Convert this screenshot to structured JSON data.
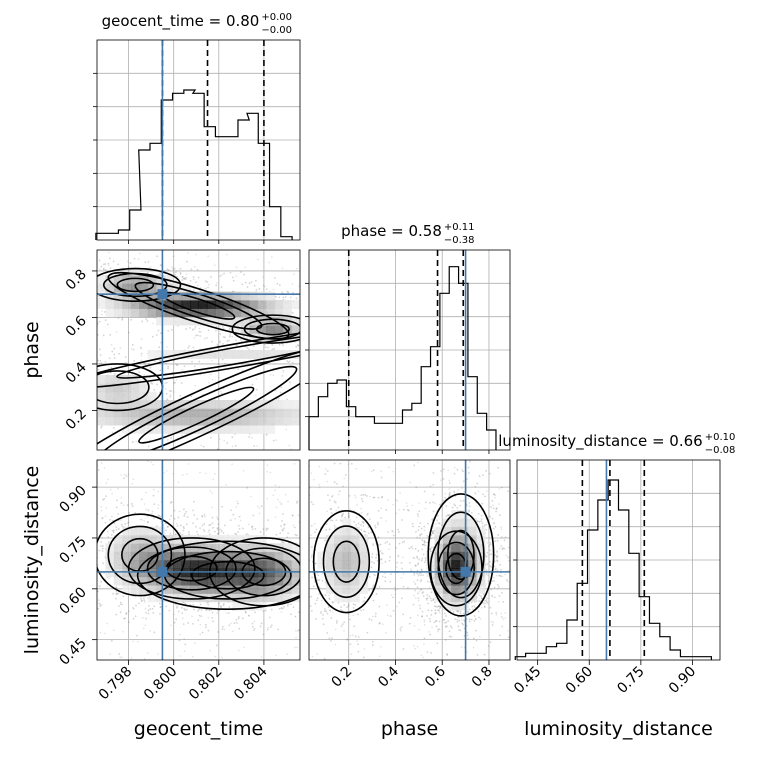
{
  "chart_data": [
    {
      "type": "histogram",
      "panel": "geocent_time-marginal",
      "title": {
        "prefix": "geocent_time = 0.80",
        "sup": "+0.00",
        "sub": "−0.00"
      },
      "xlim": [
        0.7966,
        0.8056
      ],
      "ylim": [
        0,
        6
      ],
      "x": [
        0.7968,
        0.7973,
        0.7978,
        0.7983,
        0.7987,
        0.7992,
        0.7997,
        0.8002,
        0.8007,
        0.8011,
        0.8016,
        0.8021,
        0.8026,
        0.8031,
        0.8035,
        0.804,
        0.8045,
        0.805
      ],
      "counts": [
        0.2,
        0.2,
        0.3,
        0.9,
        2.7,
        2.9,
        4.2,
        4.4,
        4.5,
        4.4,
        3.4,
        3.1,
        3.1,
        3.6,
        3.8,
        2.9,
        1.0,
        0.1
      ],
      "quantile_lines": [
        0.7995,
        0.8015,
        0.804
      ],
      "truth": 0.7995
    },
    {
      "type": "histogram",
      "panel": "phase-marginal",
      "title": {
        "prefix": "phase = 0.58",
        "sup": "+0.11",
        "sub": "−0.38"
      },
      "xlim": [
        0.03,
        0.89
      ],
      "ylim": [
        0,
        6
      ],
      "x": [
        0.05,
        0.09,
        0.13,
        0.17,
        0.21,
        0.25,
        0.29,
        0.33,
        0.37,
        0.41,
        0.45,
        0.49,
        0.53,
        0.57,
        0.61,
        0.65,
        0.69,
        0.73,
        0.77,
        0.81
      ],
      "counts": [
        1.0,
        1.6,
        2.0,
        2.1,
        1.3,
        1.0,
        1.0,
        0.8,
        0.8,
        0.8,
        1.2,
        1.4,
        2.5,
        3.1,
        4.7,
        5.5,
        5.0,
        2.2,
        1.1,
        0.6
      ],
      "quantile_lines": [
        0.2,
        0.58,
        0.69
      ],
      "truth": 0.7
    },
    {
      "type": "histogram",
      "panel": "luminosity_distance-marginal",
      "title": {
        "prefix": "luminosity_distance = 0.66",
        "sup": "+0.10",
        "sub": "−0.08"
      },
      "xlim": [
        0.39,
        0.98
      ],
      "ylim": [
        0,
        6
      ],
      "x": [
        0.4,
        0.43,
        0.46,
        0.49,
        0.52,
        0.55,
        0.58,
        0.61,
        0.64,
        0.67,
        0.7,
        0.73,
        0.76,
        0.79,
        0.82,
        0.85,
        0.88,
        0.91,
        0.94
      ],
      "counts": [
        0.1,
        0.2,
        0.2,
        0.4,
        0.5,
        1.2,
        2.3,
        3.9,
        4.8,
        5.4,
        4.5,
        3.2,
        1.9,
        1.1,
        0.7,
        0.3,
        0.1,
        0.1,
        0.1
      ],
      "quantile_lines": [
        0.58,
        0.66,
        0.76
      ],
      "truth": 0.65
    },
    {
      "type": "contour",
      "panel": "phase-vs-geocent_time",
      "xlim": [
        0.7966,
        0.8056
      ],
      "ylim": [
        0.03,
        0.89
      ],
      "xticks": [
        0.798,
        0.8,
        0.802,
        0.804
      ],
      "yticks": [
        0.2,
        0.4,
        0.6,
        0.8
      ],
      "modes": [
        {
          "x": 0.8011,
          "y": 0.65,
          "sx": 0.0021,
          "sy": 0.035,
          "rot": -18,
          "w": 1.0
        },
        {
          "x": 0.8044,
          "y": 0.55,
          "sx": 0.0009,
          "sy": 0.03,
          "rot": 0,
          "w": 0.6
        },
        {
          "x": 0.7983,
          "y": 0.74,
          "sx": 0.001,
          "sy": 0.035,
          "rot": 0,
          "w": 0.55
        },
        {
          "x": 0.801,
          "y": 0.18,
          "sx": 0.0035,
          "sy": 0.045,
          "rot": 25,
          "w": 0.45
        },
        {
          "x": 0.7975,
          "y": 0.3,
          "sx": 0.001,
          "sy": 0.05,
          "rot": 0,
          "w": 0.3
        },
        {
          "x": 0.803,
          "y": 0.44,
          "sx": 0.004,
          "sy": 0.025,
          "rot": 10,
          "w": 0.2
        }
      ],
      "truth": {
        "x": 0.7995,
        "y": 0.7
      }
    },
    {
      "type": "contour",
      "panel": "luminosity_distance-vs-geocent_time",
      "xlim": [
        0.7966,
        0.8056
      ],
      "ylim": [
        0.39,
        0.98
      ],
      "xticks": [
        0.798,
        0.8,
        0.802,
        0.804
      ],
      "yticks": [
        0.45,
        0.6,
        0.75,
        0.9
      ],
      "modes": [
        {
          "x": 0.8008,
          "y": 0.66,
          "sx": 0.0014,
          "sy": 0.045,
          "rot": 0,
          "w": 1.0
        },
        {
          "x": 0.804,
          "y": 0.65,
          "sx": 0.0012,
          "sy": 0.05,
          "rot": 0,
          "w": 0.75
        },
        {
          "x": 0.7985,
          "y": 0.7,
          "sx": 0.001,
          "sy": 0.06,
          "rot": 0,
          "w": 0.5
        },
        {
          "x": 0.8024,
          "y": 0.64,
          "sx": 0.002,
          "sy": 0.05,
          "rot": 0,
          "w": 0.45
        }
      ],
      "truth": {
        "x": 0.7995,
        "y": 0.65
      }
    },
    {
      "type": "contour",
      "panel": "luminosity_distance-vs-phase",
      "xlim": [
        0.03,
        0.89
      ],
      "ylim": [
        0.39,
        0.98
      ],
      "xticks": [
        0.2,
        0.4,
        0.6,
        0.8
      ],
      "yticks": [
        0.45,
        0.6,
        0.75,
        0.9
      ],
      "modes": [
        {
          "x": 0.66,
          "y": 0.66,
          "sx": 0.055,
          "sy": 0.055,
          "rot": 0,
          "w": 1.0
        },
        {
          "x": 0.68,
          "y": 0.7,
          "sx": 0.07,
          "sy": 0.09,
          "rot": 0,
          "w": 0.45
        },
        {
          "x": 0.19,
          "y": 0.68,
          "sx": 0.07,
          "sy": 0.075,
          "rot": 0,
          "w": 0.55
        }
      ],
      "truth": {
        "x": 0.7,
        "y": 0.65
      }
    }
  ],
  "axes": {
    "xlabels": [
      "geocent_time",
      "phase",
      "luminosity_distance"
    ],
    "ylabels": [
      "phase",
      "luminosity_distance"
    ],
    "xtick_labels": {
      "geocent_time": [
        "0.798",
        "0.800",
        "0.802",
        "0.804"
      ],
      "phase": [
        "0.2",
        "0.4",
        "0.6",
        "0.8"
      ],
      "luminosity_distance": [
        "0.45",
        "0.60",
        "0.75",
        "0.90"
      ]
    },
    "ytick_labels": {
      "phase": [
        "0.2",
        "0.4",
        "0.6",
        "0.8"
      ],
      "luminosity_distance": [
        "0.45",
        "0.60",
        "0.75",
        "0.90"
      ]
    },
    "grid": true
  },
  "colors": {
    "truth": "#4477aa",
    "hist": "#000000",
    "contour": "#000000",
    "grid": "#b0b0b0",
    "scatter": "#888888"
  }
}
